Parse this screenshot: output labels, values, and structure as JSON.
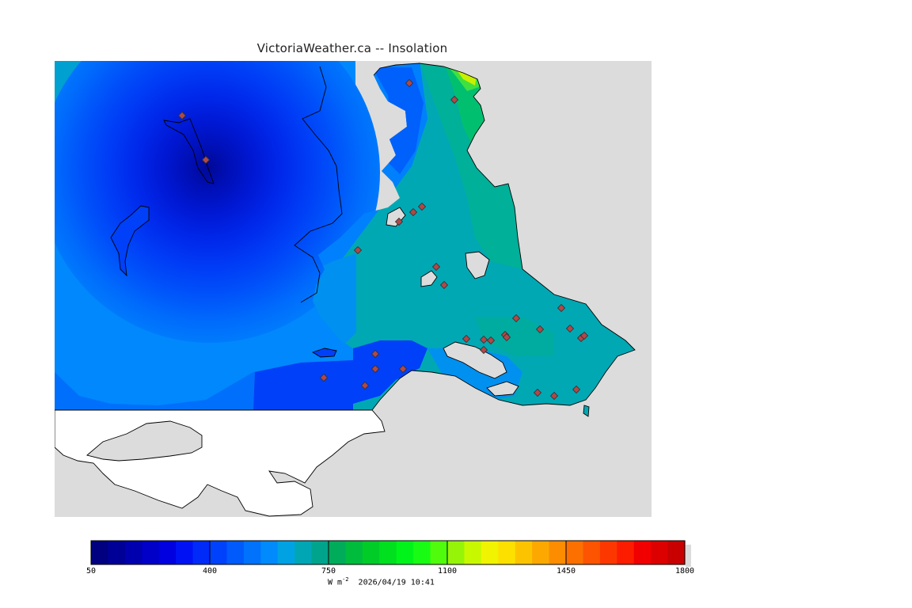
{
  "title": "VictoriaWeather.ca -- Insolation",
  "colorbar": {
    "min": 50,
    "max": 1800,
    "tick_labels": [
      "50",
      "400",
      "750",
      "1100",
      "1450",
      "1800"
    ],
    "colors": [
      "#000080",
      "#000096",
      "#0000af",
      "#0000c8",
      "#0000e1",
      "#0012f4",
      "#002af8",
      "#0042fc",
      "#005afc",
      "#0072fc",
      "#008afc",
      "#00a2e4",
      "#00a6b4",
      "#00a48c",
      "#00ac5a",
      "#00bc3c",
      "#00cc28",
      "#00e01e",
      "#00f41a",
      "#18fc14",
      "#50fc0c",
      "#96f408",
      "#c8f800",
      "#f0f400",
      "#fce000",
      "#fcc400",
      "#fca800",
      "#fc8c00",
      "#fc7000",
      "#fc5400",
      "#fc3800",
      "#fc1c00",
      "#f00000",
      "#dc0000",
      "#c80000"
    ]
  },
  "units": "W m",
  "units_exp": "-2",
  "timestamp": "2026/04/19 10:41",
  "stations": 30,
  "colors": {
    "land_outside": "#dcdcdc",
    "coastline": "#000000",
    "station_fill": "#b04848"
  }
}
